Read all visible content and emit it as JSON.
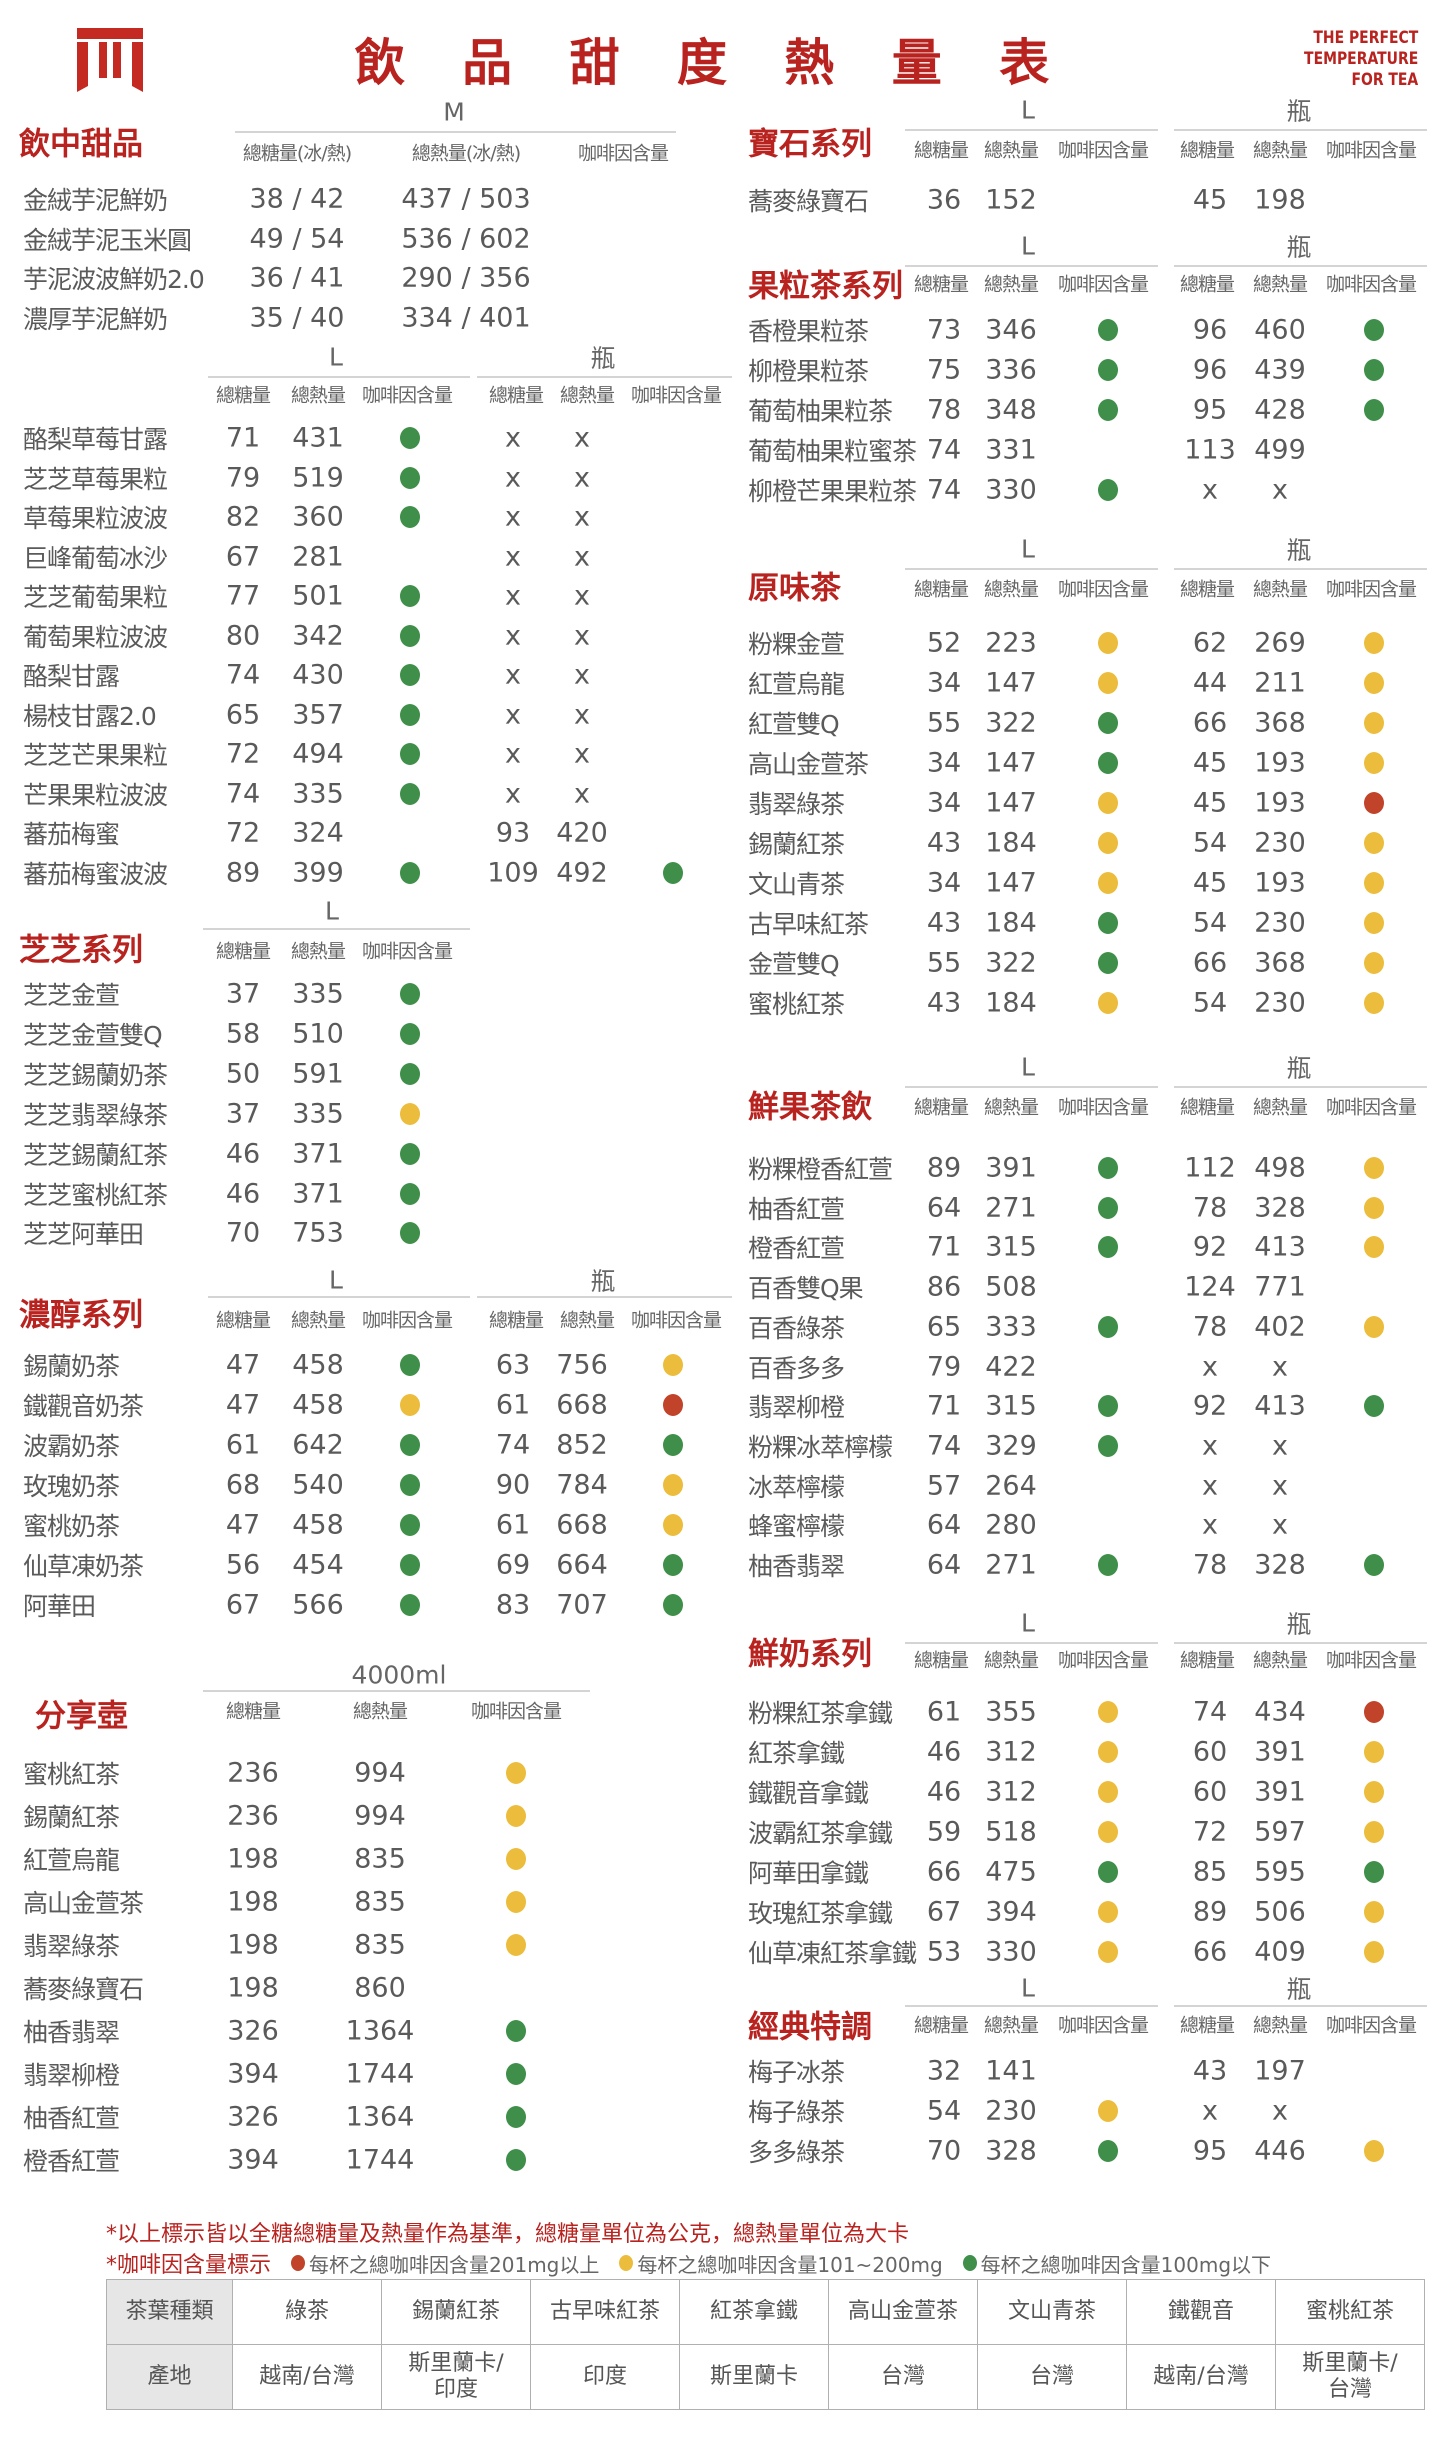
{
  "header": {
    "title": "飲 品 甜 度 熱 量 表",
    "brand_tag": [
      "THE PERFECT",
      "TEMPERATURE",
      "FOR TEA"
    ],
    "brand_color": "#b8231f"
  },
  "caffeine_colors": {
    "red": "#c0432a",
    "yellow": "#ecbd3d",
    "green": "#3f8f4a"
  },
  "sections": {
    "sweet": {
      "title": "飲中甜品",
      "sizes": [
        "M"
      ],
      "headers": [
        "總糖量(冰/熱)",
        "總熱量(冰/熱)",
        "咖啡因含量"
      ],
      "rows": [
        [
          "金絨芋泥鮮奶",
          "38 / 42",
          "437 / 503"
        ],
        [
          "金絨芋泥玉米圓",
          "49 / 54",
          "536 / 602"
        ],
        [
          "芋泥波波鮮奶2.0",
          "36 / 41",
          "290 / 356"
        ],
        [
          "濃厚芋泥鮮奶",
          "35 / 40",
          "334 / 401"
        ]
      ]
    },
    "fruit": {
      "title": "",
      "sizes": [
        "L",
        "瓶"
      ],
      "headers": [
        "總糖量",
        "總熱量",
        "咖啡因含量",
        "總糖量",
        "總熱量",
        "咖啡因含量"
      ],
      "rows": [
        [
          "酪梨草莓甘露",
          "71",
          "431",
          "green",
          "x",
          "x",
          ""
        ],
        [
          "芝芝草莓果粒",
          "79",
          "519",
          "green",
          "x",
          "x",
          ""
        ],
        [
          "草莓果粒波波",
          "82",
          "360",
          "green",
          "x",
          "x",
          ""
        ],
        [
          "巨峰葡萄冰沙",
          "67",
          "281",
          "",
          "x",
          "x",
          ""
        ],
        [
          "芝芝葡萄果粒",
          "77",
          "501",
          "green",
          "x",
          "x",
          ""
        ],
        [
          "葡萄果粒波波",
          "80",
          "342",
          "green",
          "x",
          "x",
          ""
        ],
        [
          "酪梨甘露",
          "74",
          "430",
          "green",
          "x",
          "x",
          ""
        ],
        [
          "楊枝甘露2.0",
          "65",
          "357",
          "green",
          "x",
          "x",
          ""
        ],
        [
          "芝芝芒果果粒",
          "72",
          "494",
          "green",
          "x",
          "x",
          ""
        ],
        [
          "芒果果粒波波",
          "74",
          "335",
          "green",
          "x",
          "x",
          ""
        ],
        [
          "蕃茄梅蜜",
          "72",
          "324",
          "",
          "93",
          "420",
          ""
        ],
        [
          "蕃茄梅蜜波波",
          "89",
          "399",
          "green",
          "109",
          "492",
          "green"
        ]
      ]
    },
    "zhizhi": {
      "title": "芝芝系列",
      "sizes": [
        "L"
      ],
      "headers": [
        "總糖量",
        "總熱量",
        "咖啡因含量"
      ],
      "rows": [
        [
          "芝芝金萱",
          "37",
          "335",
          "green"
        ],
        [
          "芝芝金萱雙Q",
          "58",
          "510",
          "green"
        ],
        [
          "芝芝錫蘭奶茶",
          "50",
          "591",
          "green"
        ],
        [
          "芝芝翡翠綠茶",
          "37",
          "335",
          "yellow"
        ],
        [
          "芝芝錫蘭紅茶",
          "46",
          "371",
          "green"
        ],
        [
          "芝芝蜜桃紅茶",
          "46",
          "371",
          "green"
        ],
        [
          "芝芝阿華田",
          "70",
          "753",
          "green"
        ]
      ]
    },
    "rich": {
      "title": "濃醇系列",
      "sizes": [
        "L",
        "瓶"
      ],
      "headers": [
        "總糖量",
        "總熱量",
        "咖啡因含量",
        "總糖量",
        "總熱量",
        "咖啡因含量"
      ],
      "rows": [
        [
          "錫蘭奶茶",
          "47",
          "458",
          "green",
          "63",
          "756",
          "yellow"
        ],
        [
          "鐵觀音奶茶",
          "47",
          "458",
          "yellow",
          "61",
          "668",
          "red"
        ],
        [
          "波霸奶茶",
          "61",
          "642",
          "green",
          "74",
          "852",
          "green"
        ],
        [
          "玫瑰奶茶",
          "68",
          "540",
          "green",
          "90",
          "784",
          "yellow"
        ],
        [
          "蜜桃奶茶",
          "47",
          "458",
          "green",
          "61",
          "668",
          "yellow"
        ],
        [
          "仙草凍奶茶",
          "56",
          "454",
          "green",
          "69",
          "664",
          "green"
        ],
        [
          "阿華田",
          "67",
          "566",
          "green",
          "83",
          "707",
          "green"
        ]
      ]
    },
    "share": {
      "title": "分享壺",
      "sizes": [
        "4000ml"
      ],
      "headers": [
        "總糖量",
        "總熱量",
        "咖啡因含量"
      ],
      "rows": [
        [
          "蜜桃紅茶",
          "236",
          "994",
          "yellow"
        ],
        [
          "錫蘭紅茶",
          "236",
          "994",
          "yellow"
        ],
        [
          "紅萱烏龍",
          "198",
          "835",
          "yellow"
        ],
        [
          "高山金萱茶",
          "198",
          "835",
          "yellow"
        ],
        [
          "翡翠綠茶",
          "198",
          "835",
          "yellow"
        ],
        [
          "蕎麥綠寶石",
          "198",
          "860",
          ""
        ],
        [
          "柚香翡翠",
          "326",
          "1364",
          "green"
        ],
        [
          "翡翠柳橙",
          "394",
          "1744",
          "green"
        ],
        [
          "柚香紅萱",
          "326",
          "1364",
          "green"
        ],
        [
          "橙香紅萱",
          "394",
          "1744",
          "green"
        ]
      ]
    },
    "gem": {
      "title": "寶石系列",
      "sizes": [
        "L",
        "瓶"
      ],
      "headers": [
        "總糖量",
        "總熱量",
        "咖啡因含量",
        "總糖量",
        "總熱量",
        "咖啡因含量"
      ],
      "rows": [
        [
          "蕎麥綠寶石",
          "36",
          "152",
          "",
          "45",
          "198",
          ""
        ]
      ]
    },
    "fruit_tea": {
      "title": "果粒茶系列",
      "sizes": [
        "L",
        "瓶"
      ],
      "headers": [
        "總糖量",
        "總熱量",
        "咖啡因含量",
        "總糖量",
        "總熱量",
        "咖啡因含量"
      ],
      "rows": [
        [
          "香橙果粒茶",
          "73",
          "346",
          "green",
          "96",
          "460",
          "green"
        ],
        [
          "柳橙果粒茶",
          "75",
          "336",
          "green",
          "96",
          "439",
          "green"
        ],
        [
          "葡萄柚果粒茶",
          "78",
          "348",
          "green",
          "95",
          "428",
          "green"
        ],
        [
          "葡萄柚果粒蜜茶",
          "74",
          "331",
          "",
          "113",
          "499",
          ""
        ],
        [
          "柳橙芒果果粒茶",
          "74",
          "330",
          "green",
          "x",
          "x",
          ""
        ]
      ]
    },
    "original": {
      "title": "原味茶",
      "sizes": [
        "L",
        "瓶"
      ],
      "headers": [
        "總糖量",
        "總熱量",
        "咖啡因含量",
        "總糖量",
        "總熱量",
        "咖啡因含量"
      ],
      "rows": [
        [
          "粉粿金萱",
          "52",
          "223",
          "yellow",
          "62",
          "269",
          "yellow"
        ],
        [
          "紅萱烏龍",
          "34",
          "147",
          "yellow",
          "44",
          "211",
          "yellow"
        ],
        [
          "紅萱雙Q",
          "55",
          "322",
          "green",
          "66",
          "368",
          "yellow"
        ],
        [
          "高山金萱茶",
          "34",
          "147",
          "green",
          "45",
          "193",
          "yellow"
        ],
        [
          "翡翠綠茶",
          "34",
          "147",
          "yellow",
          "45",
          "193",
          "red"
        ],
        [
          "錫蘭紅茶",
          "43",
          "184",
          "yellow",
          "54",
          "230",
          "yellow"
        ],
        [
          "文山青茶",
          "34",
          "147",
          "yellow",
          "45",
          "193",
          "yellow"
        ],
        [
          "古早味紅茶",
          "43",
          "184",
          "green",
          "54",
          "230",
          "yellow"
        ],
        [
          "金萱雙Q",
          "55",
          "322",
          "green",
          "66",
          "368",
          "yellow"
        ],
        [
          "蜜桃紅茶",
          "43",
          "184",
          "yellow",
          "54",
          "230",
          "yellow"
        ]
      ]
    },
    "fresh_fruit": {
      "title": "鮮果茶飲",
      "sizes": [
        "L",
        "瓶"
      ],
      "headers": [
        "總糖量",
        "總熱量",
        "咖啡因含量",
        "總糖量",
        "總熱量",
        "咖啡因含量"
      ],
      "rows": [
        [
          "粉粿橙香紅萱",
          "89",
          "391",
          "green",
          "112",
          "498",
          "yellow"
        ],
        [
          "柚香紅萱",
          "64",
          "271",
          "green",
          "78",
          "328",
          "yellow"
        ],
        [
          "橙香紅萱",
          "71",
          "315",
          "green",
          "92",
          "413",
          "yellow"
        ],
        [
          "百香雙Q果",
          "86",
          "508",
          "",
          "124",
          "771",
          ""
        ],
        [
          "百香綠茶",
          "65",
          "333",
          "green",
          "78",
          "402",
          "yellow"
        ],
        [
          "百香多多",
          "79",
          "422",
          "",
          "x",
          "x",
          ""
        ],
        [
          "翡翠柳橙",
          "71",
          "315",
          "green",
          "92",
          "413",
          "green"
        ],
        [
          "粉粿冰萃檸檬",
          "74",
          "329",
          "green",
          "x",
          "x",
          ""
        ],
        [
          "冰萃檸檬",
          "57",
          "264",
          "",
          "x",
          "x",
          ""
        ],
        [
          "蜂蜜檸檬",
          "64",
          "280",
          "",
          "x",
          "x",
          ""
        ],
        [
          "柚香翡翠",
          "64",
          "271",
          "green",
          "78",
          "328",
          "green"
        ]
      ]
    },
    "fresh_milk": {
      "title": "鮮奶系列",
      "sizes": [
        "L",
        "瓶"
      ],
      "headers": [
        "總糖量",
        "總熱量",
        "咖啡因含量",
        "總糖量",
        "總熱量",
        "咖啡因含量"
      ],
      "rows": [
        [
          "粉粿紅茶拿鐵",
          "61",
          "355",
          "yellow",
          "74",
          "434",
          "red"
        ],
        [
          "紅茶拿鐵",
          "46",
          "312",
          "yellow",
          "60",
          "391",
          "yellow"
        ],
        [
          "鐵觀音拿鐵",
          "46",
          "312",
          "yellow",
          "60",
          "391",
          "yellow"
        ],
        [
          "波霸紅茶拿鐵",
          "59",
          "518",
          "yellow",
          "72",
          "597",
          "yellow"
        ],
        [
          "阿華田拿鐵",
          "66",
          "475",
          "green",
          "85",
          "595",
          "green"
        ],
        [
          "玫瑰紅茶拿鐵",
          "67",
          "394",
          "yellow",
          "89",
          "506",
          "yellow"
        ],
        [
          "仙草凍紅茶拿鐵",
          "53",
          "330",
          "yellow",
          "66",
          "409",
          "yellow"
        ]
      ]
    },
    "classic": {
      "title": "經典特調",
      "sizes": [
        "L",
        "瓶"
      ],
      "headers": [
        "總糖量",
        "總熱量",
        "咖啡因含量",
        "總糖量",
        "總熱量",
        "咖啡因含量"
      ],
      "rows": [
        [
          "梅子冰茶",
          "32",
          "141",
          "",
          "43",
          "197",
          ""
        ],
        [
          "梅子綠茶",
          "54",
          "230",
          "yellow",
          "x",
          "x",
          ""
        ],
        [
          "多多綠茶",
          "70",
          "328",
          "green",
          "95",
          "446",
          "yellow"
        ]
      ]
    }
  },
  "notes": {
    "basis": "*以上標示皆以全糖總糖量及熱量作為基準，總糖量單位為公克，總熱量單位為大卡",
    "caffeine_label": "*咖啡因含量標示",
    "legend": [
      {
        "color": "red",
        "text": "每杯之總咖啡因含量201mg以上"
      },
      {
        "color": "yellow",
        "text": "每杯之總咖啡因含量101~200mg"
      },
      {
        "color": "green",
        "text": "每杯之總咖啡因含量100mg以下"
      }
    ]
  },
  "origin_table": {
    "row_headers": [
      "茶葉種類",
      "產地"
    ],
    "teas": [
      "綠茶",
      "錫蘭紅茶",
      "古早味紅茶",
      "紅茶拿鐵",
      "高山金萱茶",
      "文山青茶",
      "鐵觀音",
      "蜜桃紅茶"
    ],
    "origins": [
      "越南/台灣",
      "斯里蘭卡/\n印度",
      "印度",
      "斯里蘭卡",
      "台灣",
      "台灣",
      "越南/台灣",
      "斯里蘭卡/\n台灣"
    ]
  }
}
